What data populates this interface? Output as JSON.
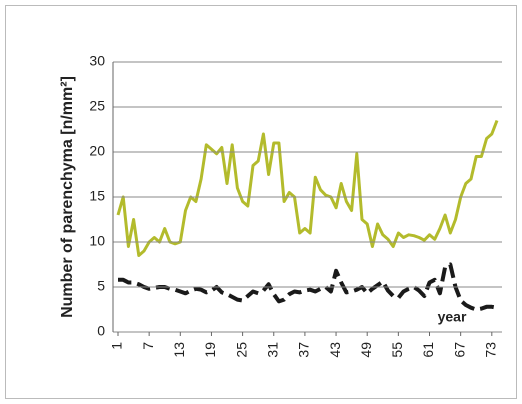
{
  "chart_data": {
    "type": "line",
    "y_label": "Number of parenchyma [n/mm²]",
    "annotation": "year",
    "categories": [
      1,
      null,
      null,
      null,
      null,
      null,
      7,
      null,
      null,
      null,
      null,
      null,
      13,
      null,
      null,
      null,
      null,
      null,
      19,
      null,
      null,
      null,
      null,
      null,
      25,
      null,
      null,
      null,
      null,
      null,
      31,
      null,
      null,
      null,
      null,
      null,
      37,
      null,
      null,
      null,
      null,
      null,
      43,
      null,
      null,
      null,
      null,
      null,
      49,
      null,
      null,
      null,
      null,
      null,
      55,
      null,
      null,
      null,
      null,
      null,
      61,
      null,
      null,
      null,
      null,
      null,
      67,
      null,
      null,
      null,
      null,
      null,
      73,
      null
    ],
    "series": [
      {
        "color": "#b3bb2c",
        "dash": false,
        "values": [
          13,
          15,
          9.5,
          12.5,
          8.5,
          9,
          10,
          10.5,
          10,
          11.5,
          10,
          9.8,
          10,
          13.5,
          15,
          14.5,
          17,
          20.8,
          20.3,
          19.8,
          20.5,
          16.5,
          20.8,
          16,
          14.5,
          14,
          18.5,
          19,
          22,
          17.5,
          21,
          21,
          14.5,
          15.5,
          15,
          11,
          11.5,
          11,
          17.2,
          15.8,
          15.2,
          15,
          13.8,
          16.5,
          14.5,
          13.5,
          19.8,
          12.5,
          12,
          9.5,
          12,
          10.8,
          10.3,
          9.5,
          11,
          10.5,
          10.8,
          10.7,
          10.5,
          10.2,
          10.8,
          10.3,
          11.5,
          13,
          11,
          12.5,
          15,
          16.5,
          17,
          19.5,
          19.5,
          21.5,
          22,
          23.5
        ]
      },
      {
        "color": "#1a1a1a",
        "dash": true,
        "values": [
          5.8,
          5.8,
          5.5,
          5.5,
          5.3,
          5,
          4.8,
          4.9,
          5,
          5,
          4.8,
          4.7,
          4.5,
          4.3,
          4.6,
          4.8,
          4.7,
          4.4,
          4.6,
          5,
          4.4,
          4.2,
          3.9,
          3.6,
          3.5,
          4,
          4.5,
          4.3,
          4.6,
          5.3,
          4.2,
          3.4,
          3.6,
          4.2,
          4.5,
          4.4,
          4.6,
          4.7,
          4.5,
          4.8,
          5,
          4.5,
          6.8,
          5.5,
          4.4,
          4.5,
          4.7,
          5,
          4.3,
          4.8,
          5.2,
          5.6,
          4.6,
          4,
          3.8,
          4.5,
          4.8,
          5,
          4.6,
          4,
          5.5,
          5.8,
          4.3,
          7.2,
          7.5,
          5,
          3.5,
          3,
          2.7,
          2.5,
          2.6,
          2.8,
          2.8,
          2.7
        ]
      }
    ],
    "ylim": [
      0,
      30
    ],
    "yticks": [
      0,
      5,
      10,
      15,
      20,
      25,
      30
    ],
    "grid": true
  }
}
